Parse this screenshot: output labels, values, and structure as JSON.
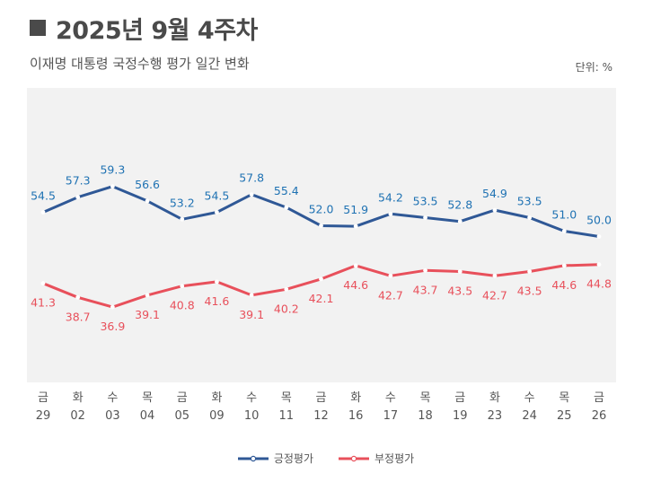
{
  "header": {
    "title": "2025년 9월 4주차",
    "subtitle": "이재명 대통령 국정수행 평가 일간 변화",
    "unit": "단위: %"
  },
  "colors": {
    "positive": "#2f5896",
    "positive_label": "#1f72b3",
    "negative": "#e8505b",
    "plot_bg": "#f2f2f2",
    "axis_text": "#555555"
  },
  "chart_data": {
    "type": "line",
    "title": "이재명 대통령 국정수행 평가 일간 변화",
    "unit": "%",
    "x_day": [
      "금",
      "화",
      "수",
      "목",
      "금",
      "화",
      "수",
      "목",
      "금",
      "화",
      "수",
      "목",
      "금",
      "화",
      "수",
      "목",
      "금"
    ],
    "x_date": [
      "29",
      "02",
      "03",
      "04",
      "05",
      "09",
      "10",
      "11",
      "12",
      "16",
      "17",
      "18",
      "19",
      "23",
      "24",
      "25",
      "26"
    ],
    "series": [
      {
        "name": "긍정평가",
        "values": [
          54.5,
          57.3,
          59.3,
          56.6,
          53.2,
          54.5,
          57.8,
          55.4,
          52.0,
          51.9,
          54.2,
          53.5,
          52.8,
          54.9,
          53.5,
          51.0,
          50.0
        ],
        "labels": [
          "54.5",
          "57.3",
          "59.3",
          "56.6",
          "53.2",
          "54.5",
          "57.8",
          "55.4",
          "52.0",
          "51.9",
          "54.2",
          "53.5",
          "52.8",
          "54.9",
          "53.5",
          "51.0",
          "50.0"
        ]
      },
      {
        "name": "부정평가",
        "values": [
          41.3,
          38.7,
          36.9,
          39.1,
          40.8,
          41.6,
          39.1,
          40.2,
          42.1,
          44.6,
          42.7,
          43.7,
          43.5,
          42.7,
          43.5,
          44.6,
          44.8
        ],
        "labels": [
          "41.3",
          "38.7",
          "36.9",
          "39.1",
          "40.8",
          "41.6",
          "39.1",
          "40.2",
          "42.1",
          "44.6",
          "42.7",
          "43.7",
          "43.5",
          "42.7",
          "43.5",
          "44.6",
          "44.8"
        ]
      }
    ],
    "legend": "bottom-center"
  }
}
